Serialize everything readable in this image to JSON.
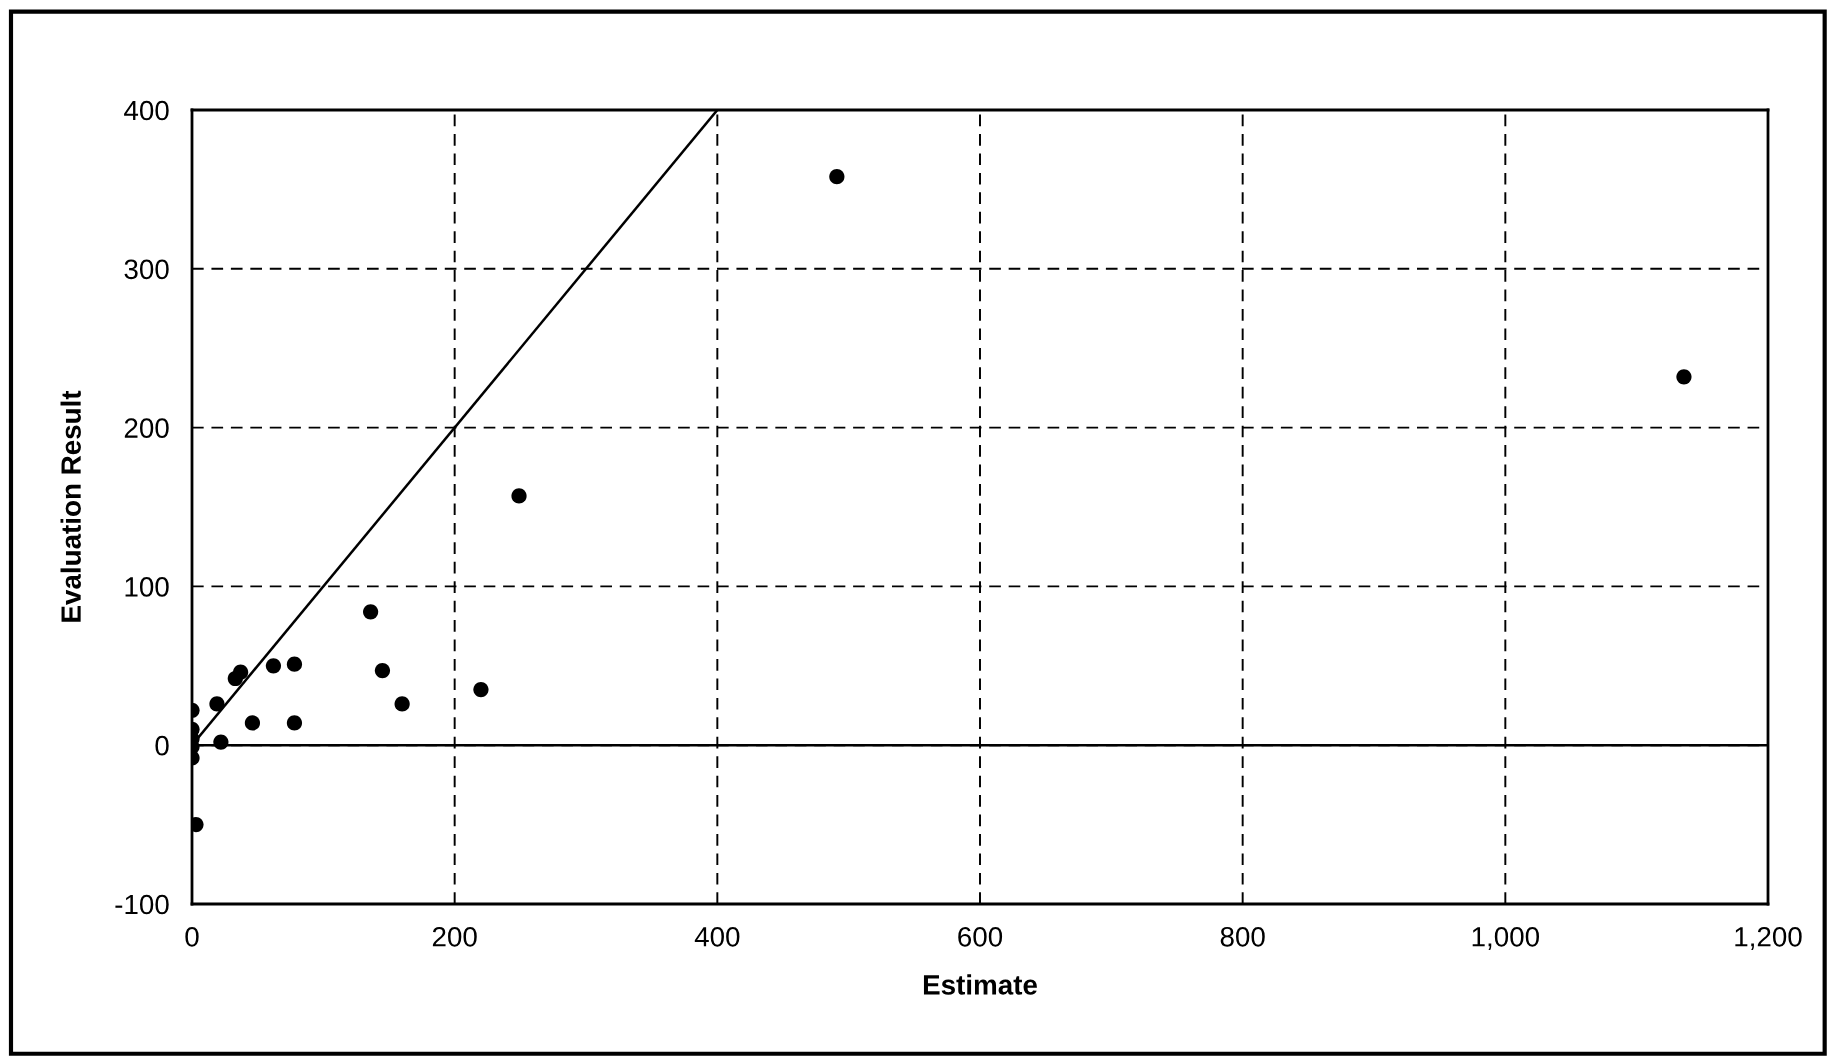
{
  "chart_data": {
    "type": "scatter",
    "xlabel": "Estimate",
    "ylabel": "Evaluation Result",
    "series": [
      {
        "color": "#000000",
        "marker": "circle",
        "x": [
          491,
          1136,
          249,
          136,
          145,
          160,
          220,
          78,
          62,
          78,
          46,
          37,
          33,
          19,
          22,
          0,
          0,
          0,
          0,
          0,
          3
        ],
        "values": [
          358,
          232,
          157,
          84,
          47,
          26,
          35,
          51,
          50,
          14,
          14,
          46,
          42,
          26,
          2,
          22,
          10,
          4,
          -1,
          -8,
          -50
        ]
      },
      {
        "type": "line",
        "color": "#000000",
        "marker": "none",
        "line_style": "solid",
        "x": [
          0,
          400
        ],
        "values": [
          0,
          400
        ]
      }
    ],
    "ref_lines": [
      {
        "axis": "y",
        "value": 0,
        "color": "#000000",
        "line_style": "solid"
      }
    ],
    "xlim": [
      0,
      1200
    ],
    "ylim": [
      -100,
      400
    ],
    "xticks": [
      0,
      200,
      400,
      600,
      800,
      {
        "value": 1000,
        "label": "1,000"
      },
      {
        "value": 1200,
        "label": "1,200"
      }
    ],
    "yticks": [
      -100,
      0,
      100,
      200,
      300,
      400
    ],
    "grid": true,
    "legend": false
  }
}
